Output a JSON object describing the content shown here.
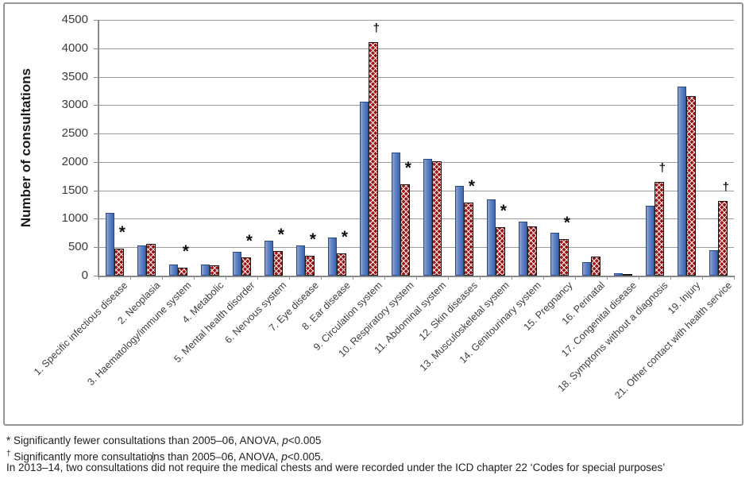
{
  "chart_data": {
    "type": "bar",
    "title": "",
    "xlabel": "",
    "ylabel": "Number of consultations",
    "ylim": [
      0,
      4500
    ],
    "ytick_step": 500,
    "ytick_labels": [
      "0",
      "500",
      "1000",
      "1500",
      "2000",
      "2500",
      "3000",
      "3500",
      "4000",
      "4500"
    ],
    "grid": true,
    "legend": "none",
    "categories": [
      "1. Specific infectious disease",
      "2. Neoplasia",
      "3. Haematology/immune system",
      "4. Metabolic",
      "5. Mental health disorder",
      "6. Nervous system",
      "7. Eye disease",
      "8. Ear disease",
      "9. Circulation system",
      "10. Respiratory system",
      "11. Abdominal system",
      "12. Skin diseases",
      "13. Musculoskeletal system",
      "14. Genitourinary system",
      "15. Pregnancy",
      "16. Perinatal",
      "17. Congenital disease",
      "18. Symptoms without a diagnosis",
      "19. Injury",
      "21. Other contact with health service"
    ],
    "series": [
      {
        "name": "2005–06",
        "color": "#4f74b8",
        "values": [
          1105,
          530,
          200,
          200,
          420,
          615,
          530,
          670,
          3060,
          2170,
          2060,
          1580,
          1340,
          950,
          760,
          240,
          45,
          1230,
          3330,
          450
        ]
      },
      {
        "name": "2013–14",
        "color": "#a11414",
        "values": [
          470,
          560,
          140,
          180,
          325,
          440,
          350,
          390,
          4115,
          1610,
          2010,
          1285,
          850,
          865,
          640,
          335,
          30,
          1655,
          3160,
          1320
        ]
      }
    ],
    "significance_markers": [
      "*",
      "",
      "*",
      "",
      "*",
      "*",
      "*",
      "*",
      "†",
      "*",
      "",
      "*",
      "*",
      "",
      "*",
      "",
      "",
      "†",
      "",
      "†"
    ]
  },
  "colors": {
    "bar_blue": "#4f74b8",
    "bar_red": "#a11414",
    "gridline": "#9c9c9c",
    "frame_border": "#959595"
  },
  "footnotes": {
    "line1": {
      "marker": "*",
      "a": " Significantly fewer consultations than 2005–06, ANOVA, ",
      "p": "p",
      "b": "<0.005"
    },
    "line2": {
      "marker": "†",
      "a": " Significantly more consultatio",
      "a2": "ns than 2005–06, ANOVA, ",
      "p": "p",
      "b": "<0.005."
    },
    "line3": {
      "text": "In 2013–14, two consultations did not require the medical chests and were recorded under the ICD chapter 22 ‘Codes for special purposes’"
    }
  }
}
